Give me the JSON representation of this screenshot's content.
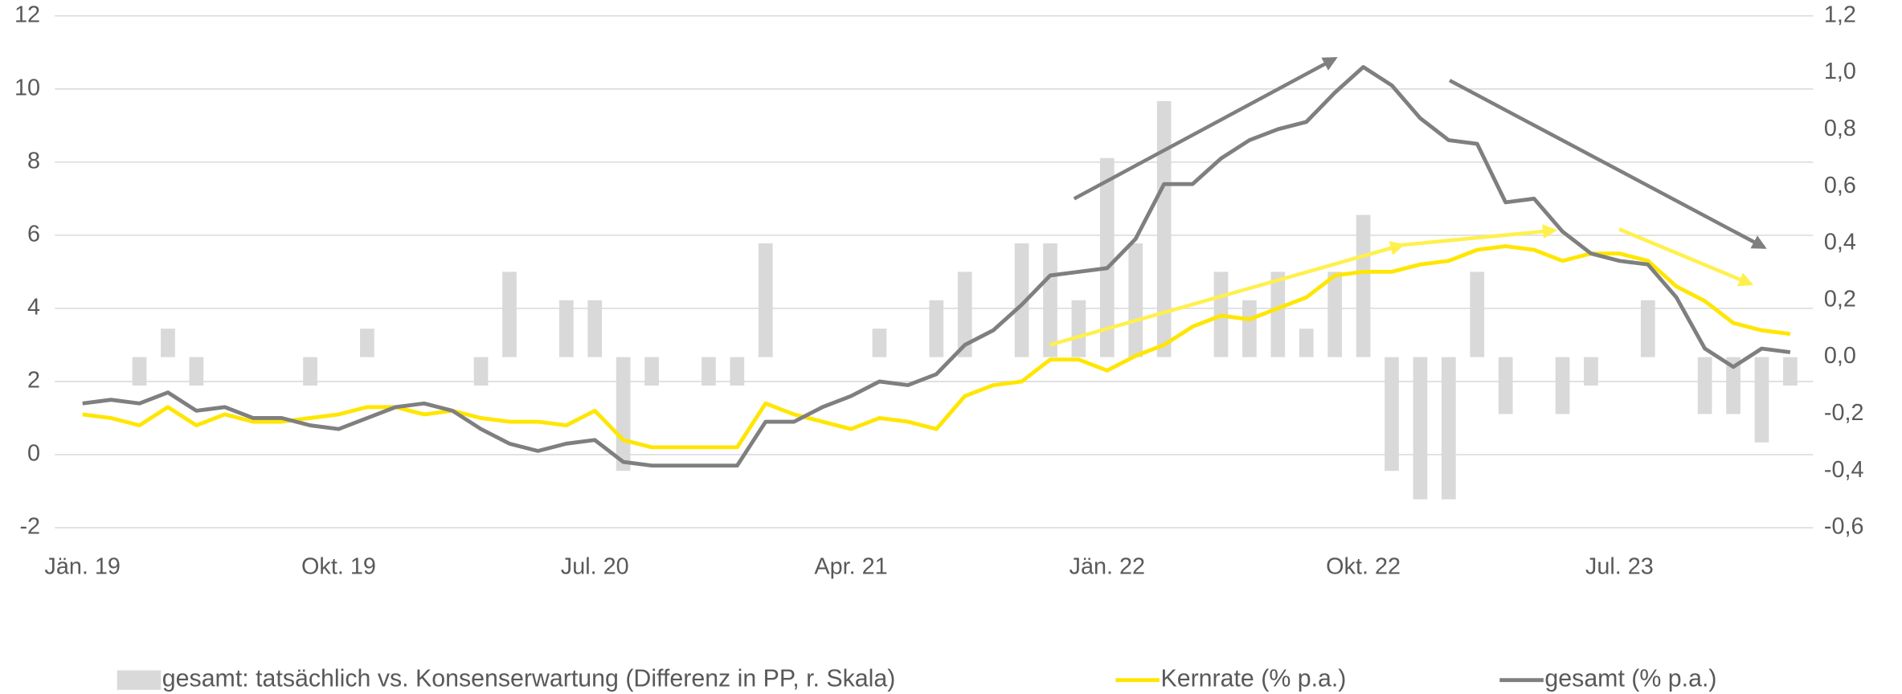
{
  "chart_data": {
    "type": "combo",
    "categories": [
      "Jän. 19",
      null,
      null,
      null,
      null,
      null,
      null,
      null,
      null,
      "Okt. 19",
      null,
      null,
      null,
      null,
      null,
      null,
      null,
      null,
      "Jul. 20",
      null,
      null,
      null,
      null,
      null,
      null,
      null,
      null,
      "Apr. 21",
      null,
      null,
      null,
      null,
      null,
      null,
      null,
      null,
      "Jän. 22",
      null,
      null,
      null,
      null,
      null,
      null,
      null,
      null,
      "Okt. 22",
      null,
      null,
      null,
      null,
      null,
      null,
      null,
      null,
      "Jul. 23",
      null,
      null,
      null,
      null,
      null,
      null
    ],
    "ylim": [
      -2,
      12
    ],
    "yticks": [
      -2,
      0,
      2,
      4,
      6,
      8,
      10,
      12
    ],
    "y2lim": [
      -0.6,
      1.2
    ],
    "y2ticks": [
      {
        "value": -0.6,
        "label": "-0,6"
      },
      {
        "value": -0.4,
        "label": "-0,4"
      },
      {
        "value": -0.2,
        "label": "-0,2"
      },
      {
        "value": 0,
        "label": "0,0"
      },
      {
        "value": 0.2,
        "label": "0,2"
      },
      {
        "value": 0.4,
        "label": "0,4"
      },
      {
        "value": 0.6,
        "label": "0,6"
      },
      {
        "value": 0.8,
        "label": "0,8"
      },
      {
        "value": 1.0,
        "label": "1,0"
      },
      {
        "value": 1.2,
        "label": "1,2"
      }
    ],
    "grid": true,
    "series": [
      {
        "name": "gesamt: tatsächlich vs. Konsenserwartung (Differenz in PP, r. Skala)",
        "type": "bar",
        "axis": "y2",
        "color": "#d9d9d9",
        "values": [
          null,
          null,
          -0.1,
          0.1,
          -0.1,
          null,
          null,
          null,
          -0.1,
          null,
          0.1,
          null,
          null,
          null,
          -0.1,
          0.3,
          null,
          0.2,
          0.2,
          -0.4,
          -0.1,
          null,
          -0.1,
          -0.1,
          0.4,
          null,
          null,
          null,
          0.1,
          null,
          0.2,
          0.3,
          null,
          0.4,
          0.4,
          0.2,
          0.7,
          0.4,
          0.9,
          null,
          0.3,
          0.2,
          0.3,
          0.1,
          0.3,
          0.5,
          -0.4,
          -0.5,
          -0.5,
          0.3,
          -0.2,
          null,
          -0.2,
          -0.1,
          null,
          0.2,
          null,
          -0.2,
          -0.2,
          -0.3,
          -0.1
        ]
      },
      {
        "name": "Kernrate (% p.a.)",
        "type": "line",
        "color": "#ffe600",
        "values": [
          1.1,
          1.0,
          0.8,
          1.3,
          0.8,
          1.1,
          0.9,
          0.9,
          1.0,
          1.1,
          1.3,
          1.3,
          1.1,
          1.2,
          1.0,
          0.9,
          0.9,
          0.8,
          1.2,
          0.4,
          0.2,
          0.2,
          0.2,
          0.2,
          1.4,
          1.1,
          0.9,
          0.7,
          1.0,
          0.9,
          0.7,
          1.6,
          1.9,
          2.0,
          2.6,
          2.6,
          2.3,
          2.7,
          3.0,
          3.5,
          3.8,
          3.7,
          4.0,
          4.3,
          4.9,
          5.0,
          5.0,
          5.2,
          5.3,
          5.6,
          5.7,
          5.6,
          5.3,
          5.5,
          5.5,
          5.3,
          4.6,
          4.2,
          3.6,
          3.4,
          3.3
        ]
      },
      {
        "name": "gesamt (% p.a.)",
        "type": "line",
        "color": "#7f7f7f",
        "values": [
          1.4,
          1.5,
          1.4,
          1.7,
          1.2,
          1.3,
          1.0,
          1.0,
          0.8,
          0.7,
          1.0,
          1.3,
          1.4,
          1.2,
          0.7,
          0.3,
          0.1,
          0.3,
          0.4,
          -0.2,
          -0.3,
          -0.3,
          -0.3,
          -0.3,
          0.9,
          0.9,
          1.3,
          1.6,
          2.0,
          1.9,
          2.2,
          3.0,
          3.4,
          4.1,
          4.9,
          5.0,
          5.1,
          5.9,
          7.4,
          7.4,
          8.1,
          8.6,
          8.9,
          9.1,
          9.9,
          10.6,
          10.1,
          9.2,
          8.6,
          8.5,
          6.9,
          7.0,
          6.1,
          5.5,
          5.3,
          5.2,
          4.3,
          2.9,
          2.4,
          2.9,
          2.8
        ]
      }
    ]
  }
}
